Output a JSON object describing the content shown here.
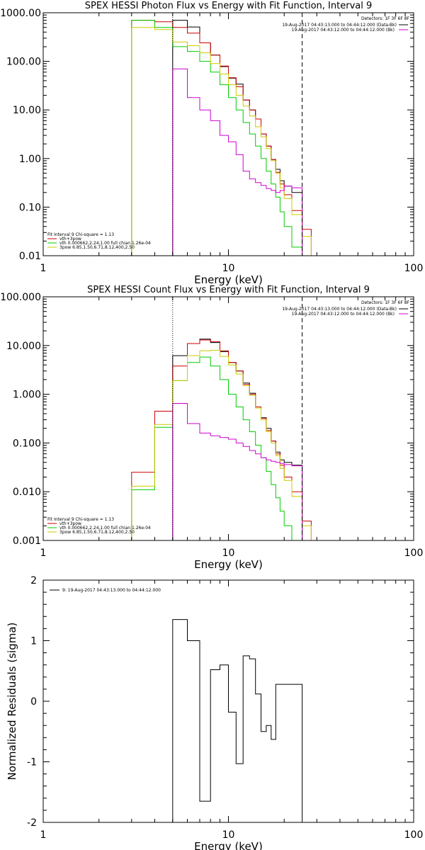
{
  "chart_data": [
    {
      "type": "line",
      "step": true,
      "title": "SPEX HESSI Photon Flux vs Energy with Fit Function, Interval 9",
      "xlabel": "Energy (keV)",
      "ylabel": "",
      "xscale": "log",
      "yscale": "log",
      "xlim": [
        1,
        100
      ],
      "ylim": [
        0.01,
        1000
      ],
      "xticks": [
        "1",
        "10",
        "100"
      ],
      "yticks": [
        "1000.00",
        "100.00",
        "10.00",
        "1.00",
        "0.10",
        "0.01"
      ],
      "legend": {
        "detectors": "Detectors: 1F 3F 6F 8F",
        "lines": [
          {
            "text": "19-Aug-2017 04:43:13.000 to 04:44:12.000 (Data-Bk)",
            "color": "#000000"
          },
          {
            "text": "19-Aug-2017 04:43:12.000 to 04:44:12.000 (Bk)",
            "color": "#d000d0"
          }
        ],
        "fit": [
          {
            "text": "Fit Interval 9   Chi-square = 1.13",
            "color": "#000000"
          },
          {
            "text": "vth+3pow",
            "color": "#cc0000"
          },
          {
            "text": "vth 0.000662,2.24,1.00  full chian 1.26e-04",
            "color": "#00cc00"
          },
          {
            "text": "3pow 6.85,1.50,6.71,8.12,400,2.50",
            "color": "#cccc00"
          }
        ]
      },
      "vlines": [
        {
          "x": 5.0,
          "style": "dotted",
          "color": "#000000"
        },
        {
          "x": 25.0,
          "style": "dashed",
          "color": "#000000"
        }
      ],
      "series": [
        {
          "name": "Data-Bk",
          "color": "#000000",
          "edges": [
            5.0,
            6.0,
            7.0,
            8.0,
            9.0,
            10.0,
            11.0,
            12.0,
            13.0,
            14.0,
            15.0,
            16.0,
            17.0,
            18.0,
            19.0,
            20.0,
            22.0,
            25.0
          ],
          "values": [
            700,
            510,
            240,
            135,
            78,
            45,
            34,
            16,
            10,
            6.5,
            3.2,
            1.8,
            0.95,
            0.6,
            0.35,
            0.27,
            0.2
          ]
        },
        {
          "name": "vth+3pow",
          "color": "#cc0000",
          "edges": [
            3.0,
            4.0,
            5.0,
            6.0,
            7.0,
            8.0,
            9.0,
            10.0,
            11.0,
            12.0,
            13.0,
            14.0,
            15.0,
            16.0,
            17.0,
            18.0,
            19.0,
            20.0,
            22.0,
            25.0,
            28.0
          ],
          "values": [
            700,
            650,
            500,
            380,
            240,
            135,
            80,
            46,
            30,
            16,
            10,
            6.5,
            3.2,
            1.8,
            0.95,
            0.52,
            0.3,
            0.18,
            0.085,
            0.035
          ]
        },
        {
          "name": "vth",
          "color": "#00cc00",
          "edges": [
            3.0,
            4.0,
            5.0,
            6.0,
            7.0,
            8.0,
            9.0,
            10.0,
            11.0,
            12.0,
            13.0,
            14.0,
            15.0,
            16.0,
            17.0,
            18.0,
            19.0,
            20.0,
            22.0,
            25.0
          ],
          "values": [
            700,
            500,
            200,
            160,
            100,
            60,
            33,
            18,
            10,
            5.5,
            3.2,
            1.8,
            1.0,
            0.55,
            0.3,
            0.16,
            0.08,
            0.04,
            0.015
          ]
        },
        {
          "name": "3pow",
          "color": "#cccc00",
          "edges": [
            3.0,
            4.0,
            5.0,
            6.0,
            7.0,
            8.0,
            9.0,
            10.0,
            11.0,
            12.0,
            13.0,
            14.0,
            15.0,
            16.0,
            17.0,
            18.0,
            19.0,
            20.0,
            22.0,
            25.0,
            28.0
          ],
          "values": [
            500,
            450,
            250,
            210,
            150,
            90,
            55,
            33,
            20,
            12,
            7.5,
            4.5,
            2.8,
            1.6,
            0.9,
            0.5,
            0.25,
            0.15,
            0.07,
            0.025
          ]
        },
        {
          "name": "Bk",
          "color": "#d000d0",
          "edges": [
            5.0,
            6.0,
            7.0,
            8.0,
            9.0,
            10.0,
            11.0,
            12.0,
            13.0,
            14.0,
            15.0,
            16.0,
            17.0,
            18.0,
            19.0,
            20.0,
            22.0,
            25.0
          ],
          "values": [
            70,
            18,
            10,
            6,
            3.0,
            2.2,
            1.2,
            0.55,
            0.38,
            0.32,
            0.28,
            0.24,
            0.22,
            0.2,
            0.22,
            0.27,
            0.25
          ]
        }
      ]
    },
    {
      "type": "line",
      "step": true,
      "title": "SPEX HESSI Count Flux vs Energy with Fit Function, Interval 9",
      "xlabel": "Energy (keV)",
      "ylabel": "",
      "xscale": "log",
      "yscale": "log",
      "xlim": [
        1,
        100
      ],
      "ylim": [
        0.001,
        100
      ],
      "xticks": [
        "1",
        "10",
        "100"
      ],
      "yticks": [
        "100.000",
        "10.000",
        "1.000",
        "0.100",
        "0.010",
        "0.001"
      ],
      "legend": {
        "detectors": "Detectors: 1F 3F 6F 8F",
        "lines": [
          {
            "text": "19-Aug-2017 04:43:13.000 to 04:44:12.000 (Data-Bk)",
            "color": "#000000"
          },
          {
            "text": "19-Aug-2017 04:43:12.000 to 04:44:12.000 (Bk)",
            "color": "#d000d0"
          }
        ],
        "fit": [
          {
            "text": "Fit Interval 9   Chi-square = 1.13",
            "color": "#000000"
          },
          {
            "text": "vth+3pow",
            "color": "#cc0000"
          },
          {
            "text": "vth 0.000662,2.24,1.00  full chian 1.26e-04",
            "color": "#00cc00"
          },
          {
            "text": "3pow 6.85,1.50,6.71,8.12,400,2.50",
            "color": "#cccc00"
          }
        ]
      },
      "vlines": [
        {
          "x": 5.0,
          "style": "dotted",
          "color": "#000000"
        },
        {
          "x": 25.0,
          "style": "dashed",
          "color": "#000000"
        }
      ],
      "series": [
        {
          "name": "Data-Bk",
          "color": "#000000",
          "edges": [
            5.0,
            6.0,
            7.0,
            8.0,
            9.0,
            10.0,
            11.0,
            12.0,
            13.0,
            14.0,
            15.0,
            16.0,
            17.0,
            18.0,
            19.0,
            20.0,
            22.0,
            25.0
          ],
          "values": [
            6.2,
            11,
            13.5,
            11.5,
            7.5,
            4.5,
            3.0,
            1.7,
            1.05,
            0.55,
            0.33,
            0.2,
            0.11,
            0.065,
            0.045,
            0.04,
            0.035
          ]
        },
        {
          "name": "vth+3pow",
          "color": "#cc0000",
          "edges": [
            3.0,
            4.0,
            5.0,
            6.0,
            7.0,
            8.0,
            9.0,
            10.0,
            11.0,
            12.0,
            13.0,
            14.0,
            15.0,
            16.0,
            17.0,
            18.0,
            19.0,
            20.0,
            22.0,
            25.0,
            28.0
          ],
          "values": [
            0.025,
            0.45,
            3.8,
            11,
            13,
            12,
            7.8,
            4.5,
            3.0,
            1.6,
            1.0,
            0.55,
            0.32,
            0.18,
            0.11,
            0.06,
            0.035,
            0.02,
            0.01,
            0.0025
          ]
        },
        {
          "name": "vth",
          "color": "#00cc00",
          "edges": [
            3.0,
            4.0,
            5.0,
            6.0,
            7.0,
            8.0,
            9.0,
            10.0,
            11.0,
            12.0,
            13.0,
            14.0,
            15.0,
            16.0,
            17.0,
            18.0,
            19.0,
            20.0,
            22.0,
            25.0
          ],
          "values": [
            0.011,
            0.21,
            1.9,
            4.5,
            5.8,
            3.8,
            2.0,
            1.0,
            0.55,
            0.3,
            0.17,
            0.09,
            0.05,
            0.026,
            0.014,
            0.0075,
            0.004,
            0.002,
            0.001
          ]
        },
        {
          "name": "3pow",
          "color": "#cccc00",
          "edges": [
            3.0,
            4.0,
            5.0,
            6.0,
            7.0,
            8.0,
            9.0,
            10.0,
            11.0,
            12.0,
            13.0,
            14.0,
            15.0,
            16.0,
            17.0,
            18.0,
            19.0,
            20.0,
            22.0,
            25.0,
            28.0
          ],
          "values": [
            0.013,
            0.24,
            1.9,
            6.2,
            7.8,
            8.0,
            6.0,
            4.0,
            2.6,
            1.5,
            0.95,
            0.52,
            0.3,
            0.17,
            0.1,
            0.055,
            0.03,
            0.017,
            0.008,
            0.002
          ]
        },
        {
          "name": "Bk",
          "color": "#d000d0",
          "edges": [
            5.0,
            6.0,
            7.0,
            8.0,
            9.0,
            10.0,
            11.0,
            12.0,
            13.0,
            14.0,
            15.0,
            16.0,
            17.0,
            18.0,
            19.0,
            20.0,
            22.0,
            25.0
          ],
          "values": [
            0.65,
            0.25,
            0.16,
            0.14,
            0.13,
            0.12,
            0.1,
            0.085,
            0.07,
            0.06,
            0.05,
            0.045,
            0.042,
            0.04,
            0.038,
            0.036,
            0.034
          ]
        }
      ]
    },
    {
      "type": "line",
      "step": true,
      "title": "",
      "xlabel": "Energy (keV)",
      "ylabel": "Normalized Residuals (sigma)",
      "xscale": "log",
      "yscale": "linear",
      "xlim": [
        1,
        100
      ],
      "ylim": [
        -2,
        2
      ],
      "xticks": [
        "1",
        "10",
        "100"
      ],
      "yticks": [
        "2",
        "1",
        "0",
        "-1",
        "-2"
      ],
      "legend": {
        "lines": [
          {
            "text": "9: 19-Aug-2017 04:43:13.000 to 04:44:12.000",
            "color": "#000000"
          }
        ]
      },
      "series": [
        {
          "name": "9: 19-Aug-2017 04:43:13.000 to 04:44:12.000",
          "color": "#000000",
          "edges": [
            5.0,
            6.0,
            7.0,
            8.0,
            9.0,
            10.0,
            11.0,
            12.0,
            13.0,
            14.0,
            15.0,
            16.0,
            17.0,
            18.0,
            19.0,
            20.0,
            22.0,
            25.0
          ],
          "values": [
            1.35,
            1.0,
            -1.65,
            0.52,
            0.6,
            -0.18,
            -1.03,
            0.75,
            0.7,
            0.12,
            -0.5,
            -0.4,
            -0.63,
            0.28,
            0.28,
            0.28,
            0.28
          ]
        }
      ]
    }
  ]
}
